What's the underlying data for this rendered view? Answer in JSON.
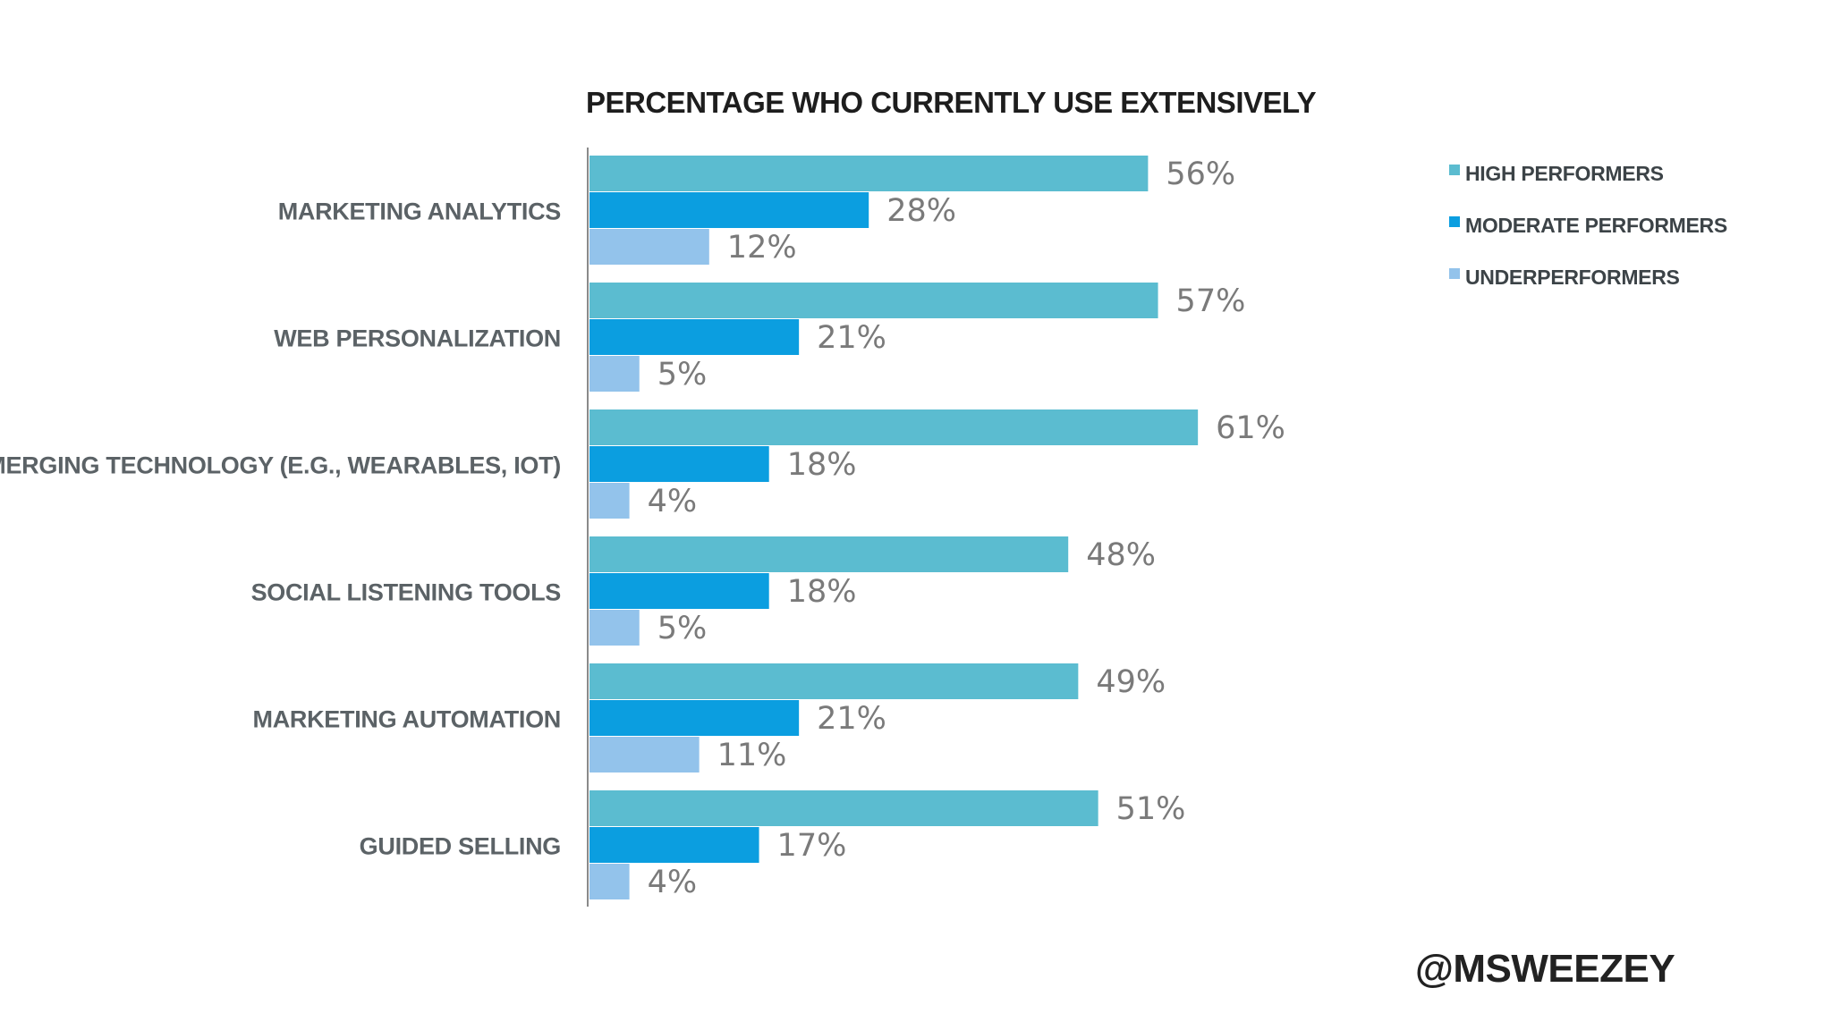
{
  "chart_data": {
    "type": "bar",
    "orientation": "horizontal",
    "title": "PERCENTAGE WHO CURRENTLY USE EXTENSIVELY",
    "categories": [
      "MARKETING ANALYTICS",
      "WEB PERSONALIZATION",
      "EMERGING TECHNOLOGY (E.G., WEARABLES, IOT)",
      "SOCIAL LISTENING TOOLS",
      "MARKETING AUTOMATION",
      "GUIDED SELLING"
    ],
    "series": [
      {
        "name": "HIGH PERFORMERS",
        "color": "#5bbcd0",
        "values": [
          56,
          57,
          61,
          48,
          49,
          51
        ]
      },
      {
        "name": "MODERATE PERFORMERS",
        "color": "#0b9ee0",
        "values": [
          28,
          21,
          18,
          18,
          21,
          17
        ]
      },
      {
        "name": "UNDERPERFORMERS",
        "color": "#93c3eb",
        "values": [
          12,
          5,
          4,
          5,
          11,
          4
        ]
      }
    ],
    "value_format": "{v}%",
    "xlim": [
      0,
      100
    ],
    "grid": false,
    "legend": "top-right"
  },
  "footer": {
    "handle": "@MSWEEZEY"
  }
}
